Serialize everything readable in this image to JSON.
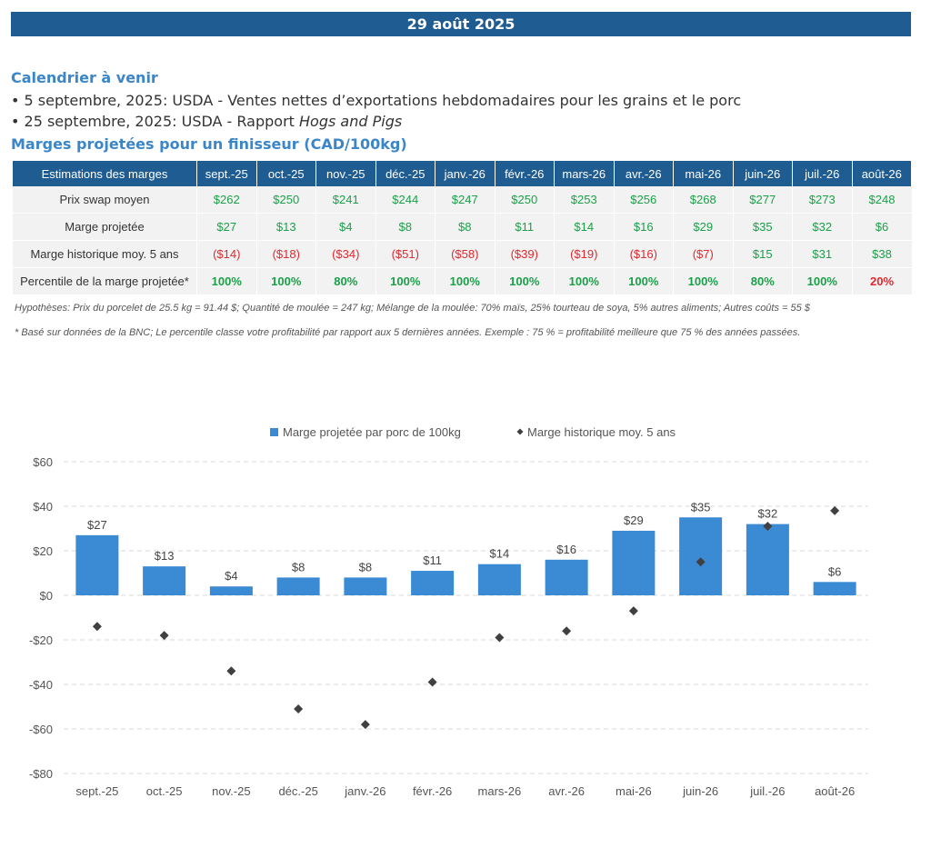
{
  "header": {
    "date": "29 août 2025"
  },
  "calendar": {
    "title": "Calendrier à venir",
    "events": [
      {
        "text": "• 5 septembre, 2025: USDA - Ventes nettes d’exportations hebdomadaires pour les grains et le porc",
        "italic": ""
      },
      {
        "text": "• 25 septembre, 2025: USDA - Rapport ",
        "italic": "Hogs and Pigs"
      }
    ]
  },
  "margins_title": "Marges projetées pour un finisseur (CAD/100kg)",
  "table": {
    "corner": "Estimations des marges",
    "months": [
      "sept.-25",
      "oct.-25",
      "nov.-25",
      "déc.-25",
      "janv.-26",
      "févr.-26",
      "mars-26",
      "avr.-26",
      "mai-26",
      "juin-26",
      "juil.-26",
      "août-26"
    ],
    "rows": [
      {
        "label": "Prix swap moyen",
        "values": [
          "$262",
          "$250",
          "$241",
          "$244",
          "$247",
          "$250",
          "$253",
          "$256",
          "$268",
          "$277",
          "$273",
          "$248"
        ]
      },
      {
        "label": "Marge projetée",
        "values": [
          "$27",
          "$13",
          "$4",
          "$8",
          "$8",
          "$11",
          "$14",
          "$16",
          "$29",
          "$35",
          "$32",
          "$6"
        ]
      },
      {
        "label": "Marge historique moy. 5 ans",
        "values": [
          "($14)",
          "($18)",
          "($34)",
          "($51)",
          "($58)",
          "($39)",
          "($19)",
          "($16)",
          "($7)",
          "$15",
          "$31",
          "$38"
        ]
      },
      {
        "label": "Percentile de la marge projetée*",
        "values": [
          "100%",
          "100%",
          "80%",
          "100%",
          "100%",
          "100%",
          "100%",
          "100%",
          "100%",
          "80%",
          "100%",
          "20%"
        ]
      }
    ]
  },
  "notes": {
    "hypotheses": "Hypothèses: Prix du porcelet de 25.5 kg = 91.44 $; Quantité de moulée = 247 kg; Mélange de la moulée: 70% maïs, 25% tourteau de soya, 5% autres aliments; Autres coûts = 55 $",
    "footnote": "* Basé sur données de la BNC; Le percentile classe votre profitabilité par rapport aux 5 dernières années. Exemple : 75 % = profitabilité meilleure que 75 % des années passées."
  },
  "colors": {
    "bar": "#3a8ad4",
    "marker": "#404040",
    "positive": "#1aa049",
    "negative": "#e0282e",
    "banner": "#1f5c92"
  },
  "chart_data": {
    "type": "bar",
    "categories": [
      "sept.-25",
      "oct.-25",
      "nov.-25",
      "déc.-25",
      "janv.-26",
      "févr.-26",
      "mars-26",
      "avr.-26",
      "mai-26",
      "juin-26",
      "juil.-26",
      "août-26"
    ],
    "series": [
      {
        "name": "Marge projetée par porc de 100kg",
        "type": "bar",
        "values": [
          27,
          13,
          4,
          8,
          8,
          11,
          14,
          16,
          29,
          35,
          32,
          6
        ],
        "labels": [
          "$27",
          "$13",
          "$4",
          "$8",
          "$8",
          "$11",
          "$14",
          "$16",
          "$29",
          "$35",
          "$32",
          "$6"
        ]
      },
      {
        "name": "Marge historique moy. 5 ans",
        "type": "scatter",
        "values": [
          -14,
          -18,
          -34,
          -51,
          -58,
          -39,
          -19,
          -16,
          -7,
          15,
          31,
          38
        ]
      }
    ],
    "ylim": [
      -80,
      60
    ],
    "yticks": [
      60,
      40,
      20,
      0,
      -20,
      -40,
      -60,
      -80
    ],
    "ytick_labels": [
      "$60",
      "$40",
      "$20",
      "$0",
      "-$20",
      "-$40",
      "-$60",
      "-$80"
    ],
    "grid": true,
    "legend_position": "top"
  }
}
